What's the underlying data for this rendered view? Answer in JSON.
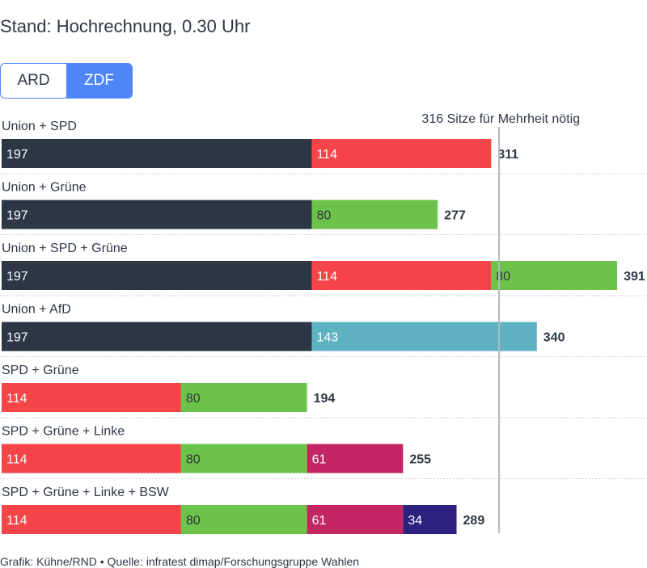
{
  "header": {
    "subtitle": "Stand: Hochrechnung, 0.30 Uhr"
  },
  "tabs": [
    {
      "label": "ARD",
      "active": false
    },
    {
      "label": "ZDF",
      "active": true
    }
  ],
  "footer": {
    "credit": "Grafik: Kühne/RND • Quelle: infratest dimap/Forschungsgruppe Wahlen"
  },
  "chart_data": {
    "type": "bar",
    "orientation": "horizontal",
    "stacked": true,
    "majority": {
      "value": 316,
      "label": "316 Sitze für Mehrheit nötig"
    },
    "parties": {
      "Union": "#2c3645",
      "SPD": "#f64548",
      "Grüne": "#6cc24a",
      "AfD": "#5fb2c1",
      "Linke": "#c42664",
      "BSW": "#2d2180"
    },
    "coalitions": [
      {
        "label": "Union + SPD",
        "total": "311",
        "segments": [
          {
            "party": "Union",
            "value": 197
          },
          {
            "party": "SPD",
            "value": 114
          }
        ]
      },
      {
        "label": "Union + Grüne",
        "total": "277",
        "segments": [
          {
            "party": "Union",
            "value": 197
          },
          {
            "party": "Grüne",
            "value": 80
          }
        ]
      },
      {
        "label": "Union + SPD + Grüne",
        "total": "391",
        "segments": [
          {
            "party": "Union",
            "value": 197
          },
          {
            "party": "SPD",
            "value": 114
          },
          {
            "party": "Grüne",
            "value": 80
          }
        ]
      },
      {
        "label": "Union + AfD",
        "total": "340",
        "segments": [
          {
            "party": "Union",
            "value": 197
          },
          {
            "party": "AfD",
            "value": 143
          }
        ]
      },
      {
        "label": "SPD + Grüne",
        "total": "194",
        "segments": [
          {
            "party": "SPD",
            "value": 114
          },
          {
            "party": "Grüne",
            "value": 80
          }
        ]
      },
      {
        "label": "SPD + Grüne + Linke",
        "total": "255",
        "segments": [
          {
            "party": "SPD",
            "value": 114
          },
          {
            "party": "Grüne",
            "value": 80
          },
          {
            "party": "Linke",
            "value": 61
          }
        ]
      },
      {
        "label": "SPD + Grüne + Linke + BSW",
        "total": "289",
        "segments": [
          {
            "party": "SPD",
            "value": 114
          },
          {
            "party": "Grüne",
            "value": 80
          },
          {
            "party": "Linke",
            "value": 61
          },
          {
            "party": "BSW",
            "value": 34
          }
        ]
      }
    ]
  }
}
